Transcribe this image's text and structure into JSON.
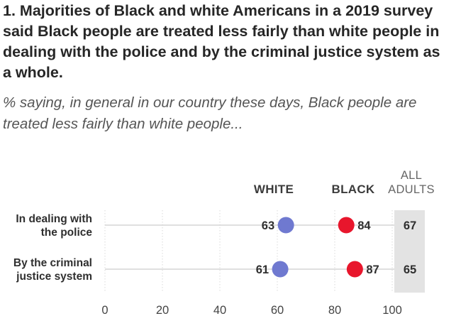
{
  "header": {
    "title": "1. Majorities of Black and white Americans in a 2019 survey said Black people are treated less fairly than white people in dealing with the police and by the criminal justice system as a whole.",
    "subtitle": "% saying, in general in our country these days, Black people are treated less fairly than white people..."
  },
  "chart_data": {
    "type": "dot",
    "title": "1. Majorities of Black and white Americans in a 2019 survey said Black people are treated less fairly than white people in dealing with the police and by the criminal justice system as a whole.",
    "subtitle": "% saying, in general in our country these days, Black people are treated less fairly than white people...",
    "categories": [
      {
        "label_lines": [
          "In dealing with",
          "the police"
        ]
      },
      {
        "label_lines": [
          "By the criminal",
          "justice system"
        ]
      }
    ],
    "series": [
      {
        "name": "WHITE",
        "color": "#6f79d0",
        "values": [
          63,
          61
        ]
      },
      {
        "name": "BLACK",
        "color": "#e8162c",
        "values": [
          84,
          87
        ]
      }
    ],
    "all_adults": {
      "label_lines": [
        "ALL",
        "ADULTS"
      ],
      "values": [
        67,
        65
      ]
    },
    "xlim": [
      0,
      100
    ],
    "xticks": [
      0,
      20,
      40,
      60,
      80,
      100
    ],
    "grid": true,
    "colors": {
      "grid": "#d9d9d9",
      "column_bg": "#e3e3e3",
      "connector": "#cccccc"
    }
  }
}
